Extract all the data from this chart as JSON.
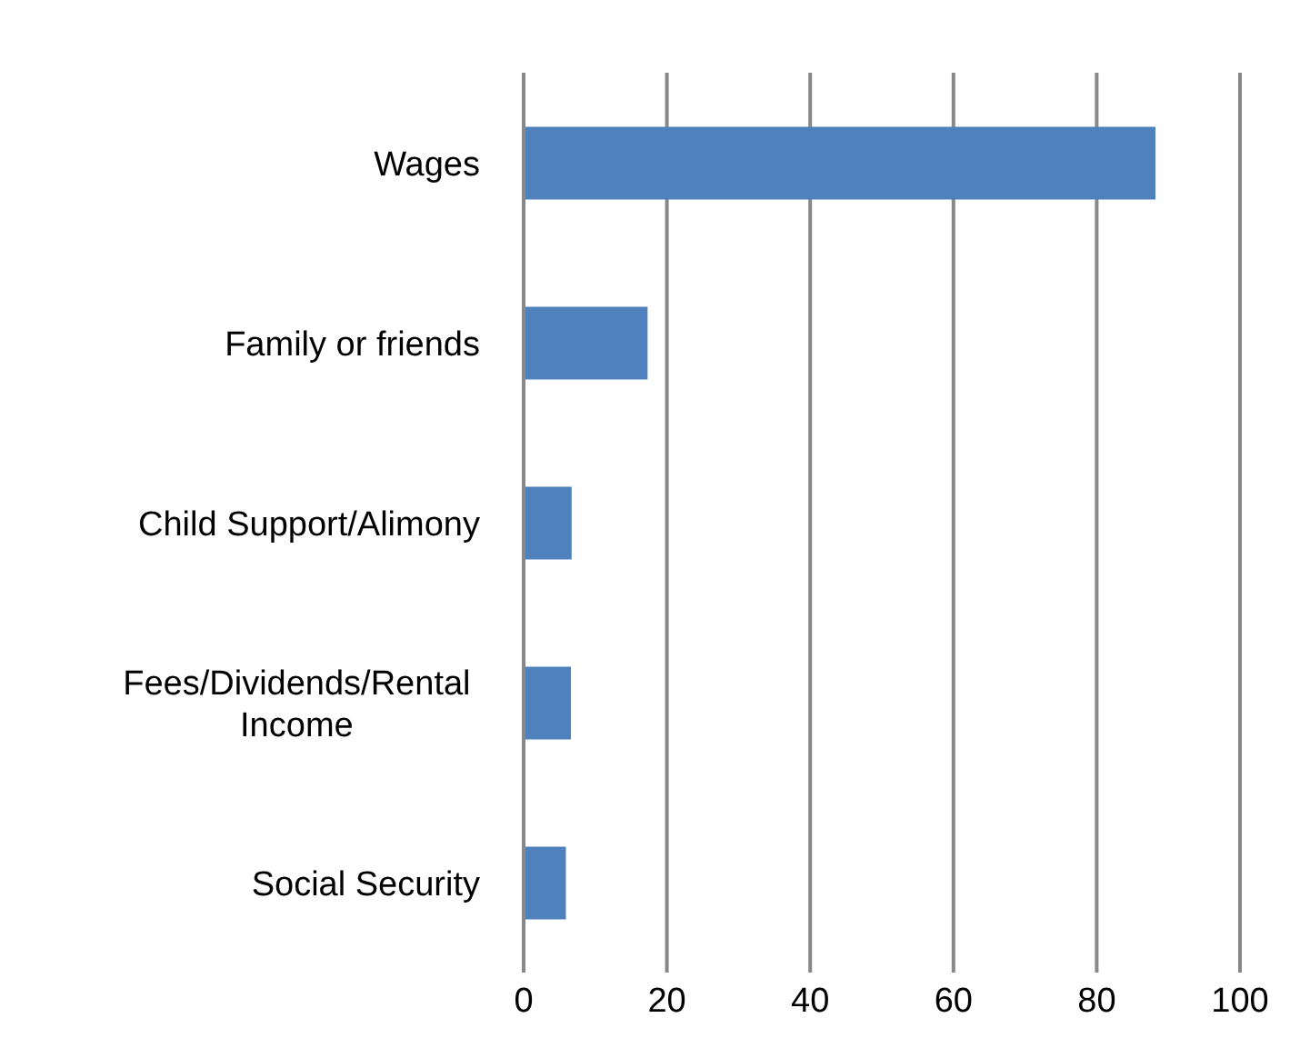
{
  "chart_data": {
    "type": "bar",
    "orientation": "horizontal",
    "categories": [
      "Wages",
      "Family or friends",
      "Child Support/Alimony",
      "Fees/Dividends/Rental Income",
      "Social Security"
    ],
    "values": [
      88.2,
      17.3,
      6.7,
      6.6,
      5.9
    ],
    "color": "#4f81bd",
    "xlim": [
      0,
      100
    ],
    "xticks": [
      0,
      20,
      40,
      60,
      80,
      100
    ],
    "grid": "x"
  }
}
